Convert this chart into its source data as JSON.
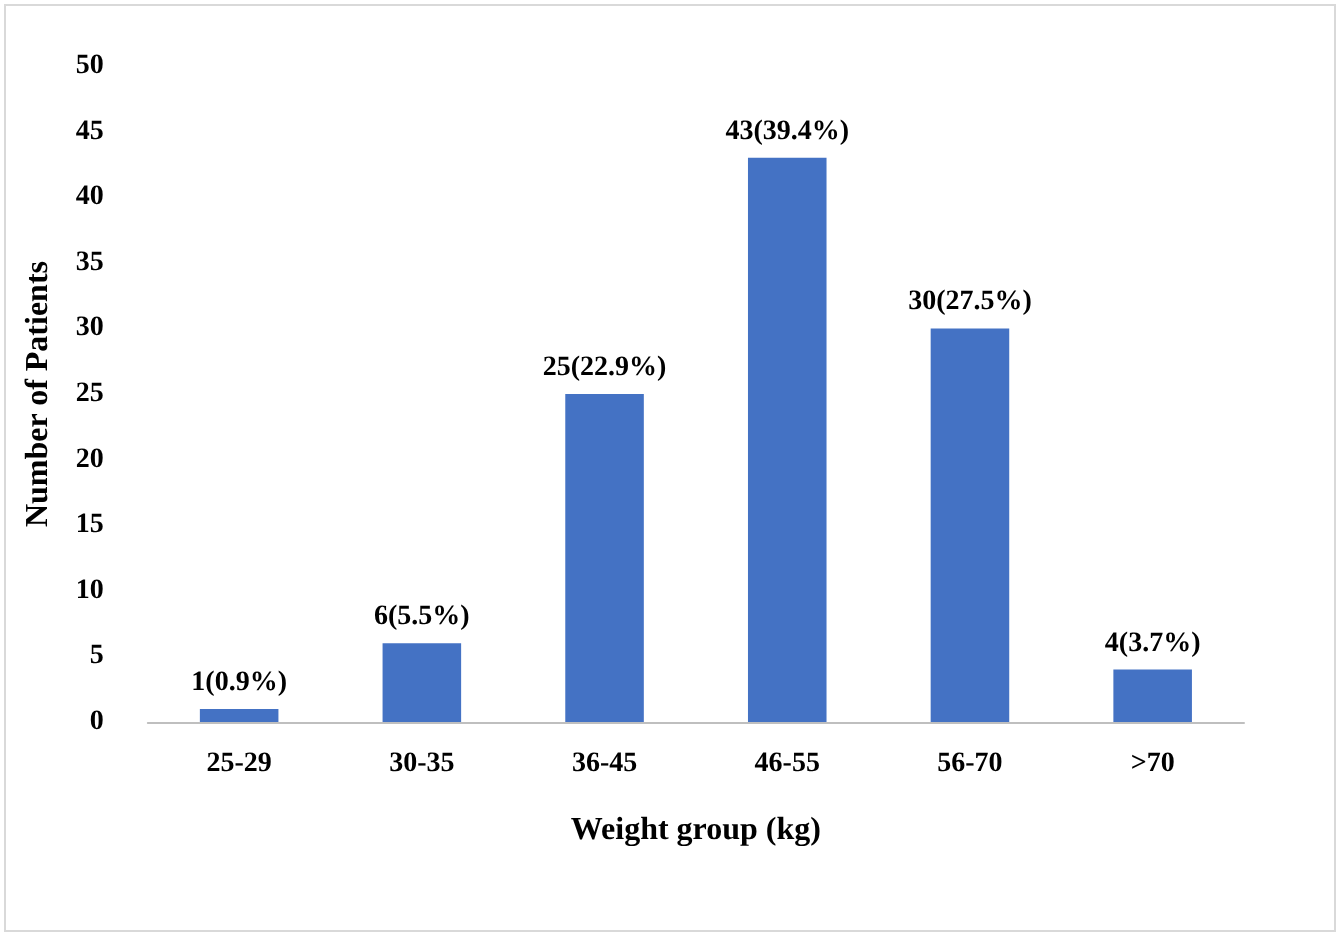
{
  "chart_data": {
    "type": "bar",
    "xlabel": "Weight group (kg)",
    "ylabel": "Number of Patients",
    "categories": [
      "25-29",
      "30-35",
      "36-45",
      "46-55",
      "56-70",
      ">70"
    ],
    "values": [
      1,
      6,
      25,
      43,
      30,
      4
    ],
    "value_labels": [
      "1(0.9%)",
      "6(5.5%)",
      "25(22.9%)",
      "43(39.4%)",
      "30(27.5%)",
      "4(3.7%)"
    ],
    "color": "#4472c4",
    "ylim": [
      0,
      50
    ],
    "yticks": [
      0,
      5,
      10,
      15,
      20,
      25,
      30,
      35,
      40,
      45,
      50
    ],
    "grid": false
  }
}
